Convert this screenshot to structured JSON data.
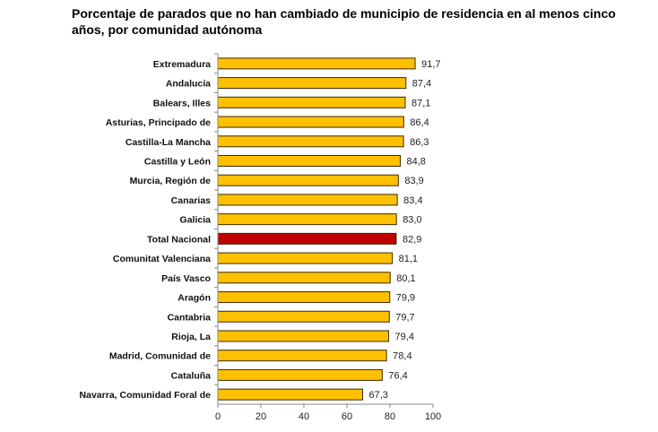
{
  "chart_data": {
    "type": "bar",
    "orientation": "horizontal",
    "title": "Porcentaje de parados que no han cambiado de municipio de residencia en al menos cinco años, por comunidad autónoma",
    "categories": [
      "Extremadura",
      "Andalucía",
      "Balears, Illes",
      "Asturias, Principado de",
      "Castilla-La Mancha",
      "Castilla y León",
      "Murcia, Región de",
      "Canarias",
      "Galicia",
      "Total Nacional",
      "Comunitat Valenciana",
      "País Vasco",
      "Aragón",
      "Cantabria",
      "Rioja, La",
      "Madrid, Comunidad de",
      "Cataluña",
      "Navarra, Comunidad Foral de"
    ],
    "values": [
      91.7,
      87.4,
      87.1,
      86.4,
      86.3,
      84.8,
      83.9,
      83.4,
      83.0,
      82.9,
      81.1,
      80.1,
      79.9,
      79.7,
      79.4,
      78.4,
      76.4,
      67.3
    ],
    "value_labels": [
      "91,7",
      "87,4",
      "87,1",
      "86,4",
      "86,3",
      "84,8",
      "83,9",
      "83,4",
      "83,0",
      "82,9",
      "81,1",
      "80,1",
      "79,9",
      "79,7",
      "79,4",
      "78,4",
      "76,4",
      "67,3"
    ],
    "xlim": [
      0,
      100
    ],
    "xticks": [
      0,
      20,
      40,
      60,
      80,
      100
    ],
    "grid": false,
    "colors": {
      "default": "#FFC000",
      "highlight": "#C00000",
      "highlight_category": "Total Nacional"
    }
  }
}
